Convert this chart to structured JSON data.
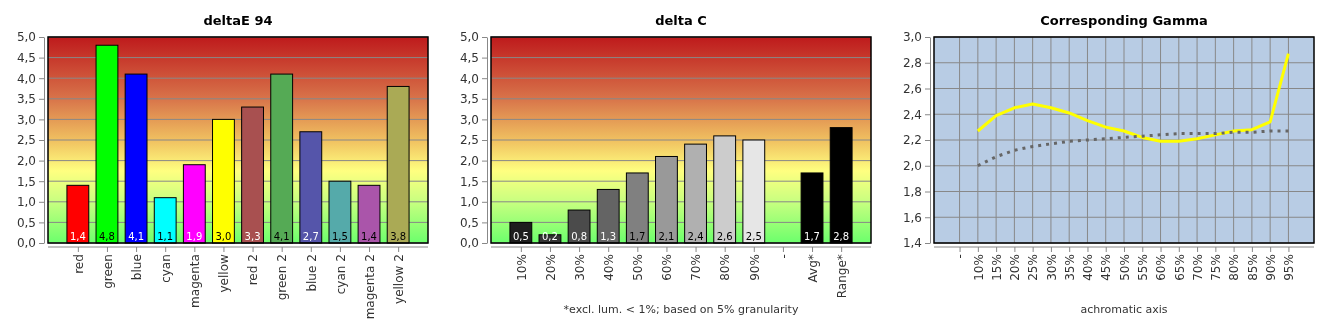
{
  "chart_data": [
    {
      "type": "bar",
      "title": "deltaE 94",
      "categories": [
        "red",
        "green",
        "blue",
        "cyan",
        "magenta",
        "yellow",
        "red 2",
        "green 2",
        "blue 2",
        "cyan 2",
        "magenta 2",
        "yellow 2"
      ],
      "values": [
        1.4,
        4.8,
        4.1,
        1.1,
        1.9,
        3.0,
        3.3,
        4.1,
        2.7,
        1.5,
        1.4,
        3.8
      ],
      "colors": [
        "#ff0000",
        "#00ff00",
        "#0000ff",
        "#00ffff",
        "#ff00ff",
        "#ffff00",
        "#a85050",
        "#55aa55",
        "#5555aa",
        "#55aaaa",
        "#aa55aa",
        "#aaaa55"
      ],
      "value_labels": [
        "1,4",
        "4,8",
        "4,1",
        "1,1",
        "1,9",
        "3,0",
        "3,3",
        "4,1",
        "2,7",
        "1,5",
        "1,4",
        "3,8"
      ],
      "ylim": [
        0,
        5
      ],
      "yticks": [
        {
          "value": 0,
          "label": "0,0"
        },
        {
          "value": 0.5,
          "label": "0,5"
        },
        {
          "value": 1,
          "label": "1,0"
        },
        {
          "value": 1.5,
          "label": "1,5"
        },
        {
          "value": 2,
          "label": "2,0"
        },
        {
          "value": 2.5,
          "label": "2,5"
        },
        {
          "value": 3,
          "label": "3,0"
        },
        {
          "value": 3.5,
          "label": "3,5"
        },
        {
          "value": 4,
          "label": "4,0"
        },
        {
          "value": 4.5,
          "label": "4,5"
        },
        {
          "value": 5,
          "label": "5,0"
        }
      ],
      "grid": "y"
    },
    {
      "type": "bar",
      "title": "delta C",
      "xlabel": "*excl. lum. < 1%; based on 5% granularity",
      "categories": [
        "10%",
        "20%",
        "30%",
        "40%",
        "50%",
        "60%",
        "70%",
        "80%",
        "90%",
        "-",
        "Avg*",
        "Range*"
      ],
      "values": [
        0.5,
        0.2,
        0.8,
        1.3,
        1.7,
        2.1,
        2.4,
        2.6,
        2.5,
        null,
        1.7,
        2.8
      ],
      "colors": [
        "#1e1e1e",
        "#333333",
        "#4b4b4b",
        "#646464",
        "#808080",
        "#999999",
        "#b0b0b0",
        "#cccccc",
        "#e6e6e6",
        null,
        "#000000",
        "#000000"
      ],
      "value_labels": [
        "0,5",
        "0,2",
        "0,8",
        "1,3",
        "1,7",
        "2,1",
        "2,4",
        "2,6",
        "2,5",
        null,
        "1,7",
        "2,8"
      ],
      "ylim": [
        0,
        5
      ],
      "yticks": [
        {
          "value": 0,
          "label": "0,0"
        },
        {
          "value": 0.5,
          "label": "0,5"
        },
        {
          "value": 1,
          "label": "1,0"
        },
        {
          "value": 1.5,
          "label": "1,5"
        },
        {
          "value": 2,
          "label": "2,0"
        },
        {
          "value": 2.5,
          "label": "2,5"
        },
        {
          "value": 3,
          "label": "3,0"
        },
        {
          "value": 3.5,
          "label": "3,5"
        },
        {
          "value": 4,
          "label": "4,0"
        },
        {
          "value": 4.5,
          "label": "4,5"
        },
        {
          "value": 5,
          "label": "5,0"
        }
      ],
      "grid": "y"
    },
    {
      "type": "line",
      "title": "Corresponding Gamma",
      "xlabel": "achromatic axis",
      "categories": [
        "-",
        "10%",
        "15%",
        "20%",
        "25%",
        "30%",
        "35%",
        "40%",
        "45%",
        "50%",
        "55%",
        "60%",
        "65%",
        "70%",
        "75%",
        "80%",
        "85%",
        "90%",
        "95%"
      ],
      "series": [
        {
          "color": "#ffff00",
          "line_style": "solid",
          "values": [
            null,
            2.27,
            2.39,
            2.45,
            2.48,
            2.45,
            2.41,
            2.35,
            2.3,
            2.27,
            2.22,
            2.19,
            2.19,
            2.21,
            2.24,
            2.27,
            2.28,
            2.34,
            2.87
          ]
        },
        {
          "color": "#666666",
          "line_style": "dotted",
          "values": [
            null,
            2.0,
            2.07,
            2.12,
            2.15,
            2.17,
            2.19,
            2.2,
            2.21,
            2.22,
            2.23,
            2.24,
            2.25,
            2.25,
            2.25,
            2.26,
            2.26,
            2.27,
            2.27
          ]
        }
      ],
      "ylim": [
        1.4,
        3
      ],
      "yticks": [
        {
          "value": 1.4,
          "label": "1,4"
        },
        {
          "value": 1.6,
          "label": "1,6"
        },
        {
          "value": 1.8,
          "label": "1,8"
        },
        {
          "value": 2,
          "label": "2,0"
        },
        {
          "value": 2.2,
          "label": "2,2"
        },
        {
          "value": 2.4,
          "label": "2,4"
        },
        {
          "value": 2.6,
          "label": "2,6"
        },
        {
          "value": 2.8,
          "label": "2,8"
        },
        {
          "value": 3,
          "label": "3,0"
        }
      ],
      "grid": true,
      "marker": "none"
    }
  ]
}
